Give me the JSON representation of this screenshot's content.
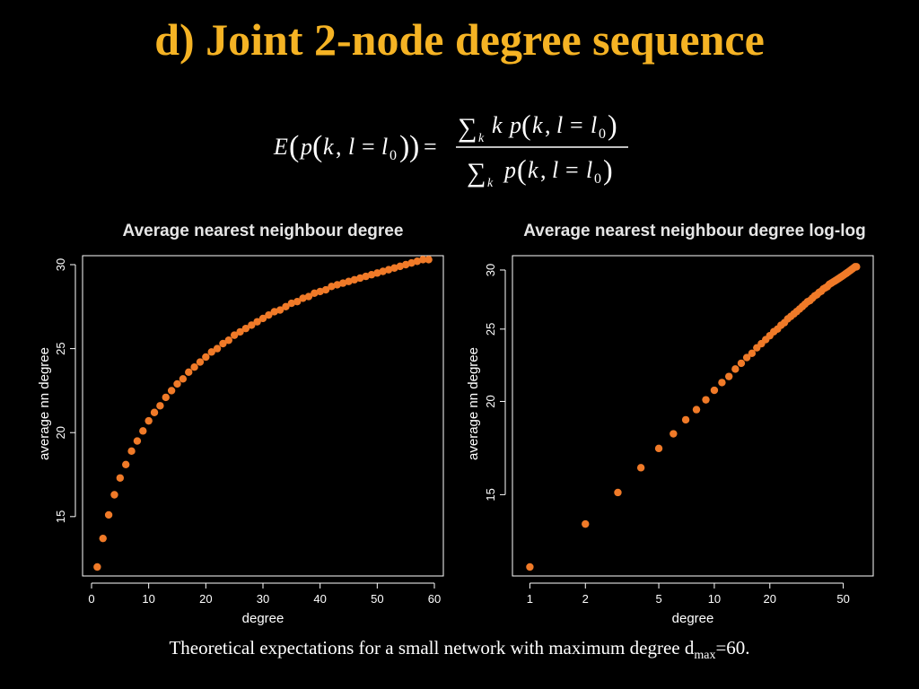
{
  "slide": {
    "title": "d) Joint 2-node degree sequence",
    "caption": {
      "text": "Theoretical expectations for a small network with maximum degree d",
      "subscript": "max",
      "suffix": "=60."
    }
  },
  "formula": {
    "E": "E",
    "p": "p",
    "k": "k",
    "l": "l",
    "l0": "l",
    "zero": "0",
    "eq": "=",
    "comma": ",",
    "sum": "∑",
    "sum_index": "k"
  },
  "colors": {
    "title": "#f5b324",
    "marker": "#f07a28",
    "axis": "#ffffff",
    "background": "#000000"
  },
  "chart_data": [
    {
      "type": "scatter",
      "title": "Average nearest neighbour degree",
      "xlabel": "degree",
      "ylabel": "average nn degree",
      "xscale": "linear",
      "yscale": "linear",
      "xlim": [
        0,
        60
      ],
      "ylim": [
        12,
        30
      ],
      "xticks": [
        0,
        10,
        20,
        30,
        40,
        50,
        60
      ],
      "yticks": [
        15,
        20,
        25,
        30
      ],
      "x": [
        1,
        2,
        3,
        4,
        5,
        6,
        7,
        8,
        9,
        10,
        11,
        12,
        13,
        14,
        15,
        16,
        17,
        18,
        19,
        20,
        21,
        22,
        23,
        24,
        25,
        26,
        27,
        28,
        29,
        30,
        31,
        32,
        33,
        34,
        35,
        36,
        37,
        38,
        39,
        40,
        41,
        42,
        43,
        44,
        45,
        46,
        47,
        48,
        49,
        50,
        51,
        52,
        53,
        54,
        55,
        56,
        57,
        58,
        59
      ],
      "y": [
        12.0,
        13.7,
        15.1,
        16.3,
        17.3,
        18.1,
        18.9,
        19.5,
        20.1,
        20.7,
        21.2,
        21.6,
        22.1,
        22.5,
        22.9,
        23.2,
        23.6,
        23.9,
        24.2,
        24.5,
        24.8,
        25.0,
        25.3,
        25.5,
        25.8,
        26.0,
        26.2,
        26.4,
        26.6,
        26.8,
        27.0,
        27.2,
        27.3,
        27.5,
        27.7,
        27.8,
        28.0,
        28.1,
        28.3,
        28.4,
        28.5,
        28.7,
        28.8,
        28.9,
        29.0,
        29.1,
        29.2,
        29.3,
        29.4,
        29.5,
        29.6,
        29.7,
        29.8,
        29.9,
        30.0,
        30.1,
        30.2,
        30.3,
        30.3
      ]
    },
    {
      "type": "scatter",
      "title": "Average nearest neighbour degree log-log",
      "xlabel": "degree",
      "ylabel": "average nn degree",
      "xscale": "log",
      "yscale": "log",
      "xlim": [
        0.9,
        65
      ],
      "ylim": [
        12,
        30.5
      ],
      "xticks": [
        1,
        2,
        5,
        10,
        20,
        50
      ],
      "yticks": [
        15,
        20,
        25,
        30
      ],
      "x": [
        1,
        2,
        3,
        4,
        5,
        6,
        7,
        8,
        9,
        10,
        11,
        12,
        13,
        14,
        15,
        16,
        17,
        18,
        19,
        20,
        21,
        22,
        23,
        24,
        25,
        26,
        27,
        28,
        29,
        30,
        31,
        32,
        33,
        34,
        35,
        36,
        37,
        38,
        39,
        40,
        41,
        42,
        43,
        44,
        45,
        46,
        47,
        48,
        49,
        50,
        51,
        52,
        53,
        54,
        55,
        56,
        57,
        58,
        59
      ],
      "y": [
        12.0,
        13.7,
        15.1,
        16.3,
        17.3,
        18.1,
        18.9,
        19.5,
        20.1,
        20.7,
        21.2,
        21.6,
        22.1,
        22.5,
        22.9,
        23.2,
        23.6,
        23.9,
        24.2,
        24.5,
        24.8,
        25.0,
        25.3,
        25.5,
        25.8,
        26.0,
        26.2,
        26.4,
        26.6,
        26.8,
        27.0,
        27.2,
        27.3,
        27.5,
        27.7,
        27.8,
        28.0,
        28.1,
        28.3,
        28.4,
        28.5,
        28.7,
        28.8,
        28.9,
        29.0,
        29.1,
        29.2,
        29.3,
        29.4,
        29.5,
        29.6,
        29.7,
        29.8,
        29.9,
        30.0,
        30.1,
        30.2,
        30.3,
        30.3
      ]
    }
  ]
}
